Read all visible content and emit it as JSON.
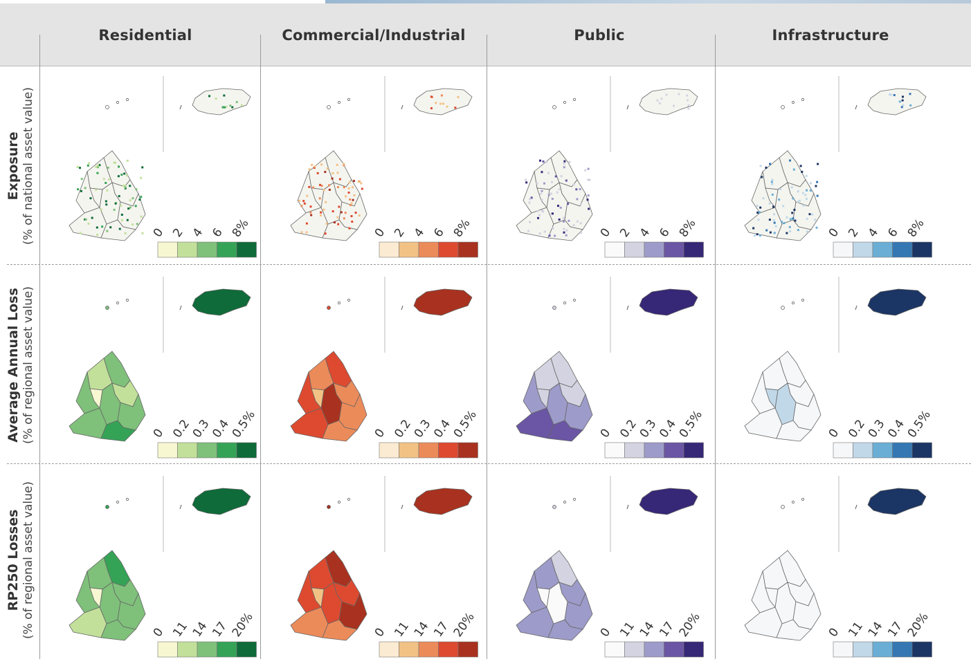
{
  "columns": [
    "Residential",
    "Commercial/Industrial",
    "Public",
    "Infrastructure"
  ],
  "rows": [
    {
      "title": "Exposure",
      "subtitle": "(% of national asset value)",
      "legend": [
        "0",
        "2",
        "4",
        "6",
        "8%"
      ]
    },
    {
      "title": "Average Annual Loss",
      "subtitle": "(% of regional asset value)",
      "legend": [
        "0",
        "0.2",
        "0.3",
        "0.4",
        "0.5%"
      ]
    },
    {
      "title": "RP250 Losses",
      "subtitle": "(% of regional asset value)",
      "legend": [
        "0",
        "11",
        "14",
        "17",
        "20%"
      ]
    }
  ],
  "palettes": {
    "Residential": [
      "#f7f7d2",
      "#c2e09a",
      "#7fc07a",
      "#35a356",
      "#0f6b39"
    ],
    "Commercial/Industrial": [
      "#fbebd2",
      "#f2c285",
      "#ec8b5a",
      "#dd4a30",
      "#a8321f"
    ],
    "Public": [
      "#fafafa",
      "#d3d3e1",
      "#9d9bc9",
      "#6a56a4",
      "#372777"
    ],
    "Infrastructure": [
      "#f5f7f9",
      "#c1d8e8",
      "#6aaed5",
      "#3477b3",
      "#1b3564"
    ]
  },
  "maps": [
    {
      "column": "Residential",
      "row": "Exposure",
      "regions": [
        0,
        0,
        0,
        0,
        0,
        0,
        0,
        0,
        0
      ],
      "island": 0,
      "dots": 4
    },
    {
      "column": "Commercial/Industrial",
      "row": "Exposure",
      "regions": [
        0,
        0,
        0,
        0,
        0,
        0,
        0,
        0,
        0
      ],
      "island": 0,
      "dots": 3
    },
    {
      "column": "Public",
      "row": "Exposure",
      "regions": [
        0,
        0,
        0,
        0,
        0,
        0,
        0,
        0,
        0
      ],
      "island": 0,
      "dots": 1
    },
    {
      "column": "Infrastructure",
      "row": "Exposure",
      "regions": [
        0,
        0,
        0,
        0,
        0,
        0,
        0,
        0,
        0
      ],
      "island": 0,
      "dots": 4
    },
    {
      "column": "Residential",
      "row": "Average Annual Loss",
      "regions": [
        2,
        1,
        1,
        2,
        2,
        0,
        2,
        2,
        3
      ],
      "island": 4,
      "dots": 0
    },
    {
      "column": "Commercial/Industrial",
      "row": "Average Annual Loss",
      "regions": [
        3,
        2,
        2,
        3,
        4,
        1,
        2,
        3,
        2
      ],
      "island": 4,
      "dots": 0
    },
    {
      "column": "Public",
      "row": "Average Annual Loss",
      "regions": [
        1,
        1,
        1,
        2,
        2,
        1,
        2,
        3,
        3
      ],
      "island": 4,
      "dots": 0
    },
    {
      "column": "Infrastructure",
      "row": "Average Annual Loss",
      "regions": [
        0,
        0,
        0,
        0,
        1,
        1,
        0,
        0,
        0
      ],
      "island": 4,
      "dots": 0
    },
    {
      "column": "Residential",
      "row": "RP250 Losses",
      "regions": [
        3,
        2,
        2,
        2,
        2,
        0,
        2,
        1,
        2
      ],
      "island": 4,
      "dots": 0
    },
    {
      "column": "Commercial/Industrial",
      "row": "RP250 Losses",
      "regions": [
        4,
        3,
        3,
        3,
        3,
        1,
        4,
        2,
        2
      ],
      "island": 4,
      "dots": 0
    },
    {
      "column": "Public",
      "row": "RP250 Losses",
      "regions": [
        1,
        2,
        2,
        2,
        0,
        0,
        2,
        2,
        2
      ],
      "island": 4,
      "dots": 0
    },
    {
      "column": "Infrastructure",
      "row": "RP250 Losses",
      "regions": [
        0,
        0,
        0,
        0,
        0,
        0,
        0,
        0,
        0
      ],
      "island": 4,
      "dots": 0
    }
  ]
}
